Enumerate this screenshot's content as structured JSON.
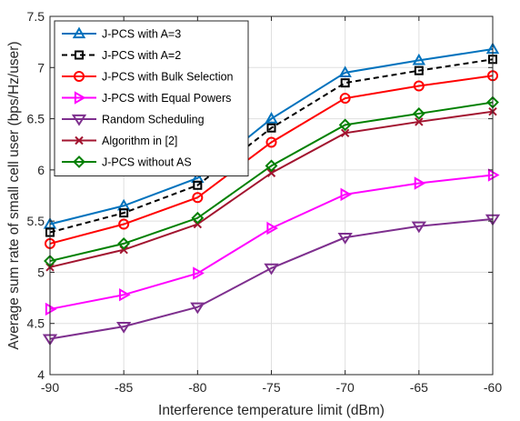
{
  "chart_data": {
    "type": "line",
    "title": "",
    "xlabel": "Interference temperature limit (dBm)",
    "ylabel": "Average sum rate of small cell user (bps/Hz/user)",
    "xlim": [
      -90,
      -60
    ],
    "ylim": [
      4,
      7.5
    ],
    "x": [
      -90,
      -85,
      -80,
      -75,
      -70,
      -65,
      -60
    ],
    "xticks": [
      "-90",
      "-85",
      "-80",
      "-75",
      "-70",
      "-65",
      "-60"
    ],
    "yticks": [
      "4",
      "4.5",
      "5",
      "5.5",
      "6",
      "6.5",
      "7",
      "7.5"
    ],
    "grid": true,
    "legend_position": "top-left",
    "series": [
      {
        "name": "J-PCS with A=3",
        "color": "#0072BD",
        "marker": "triangle-up",
        "dash": "solid",
        "values": [
          5.47,
          5.65,
          5.92,
          6.5,
          6.95,
          7.07,
          7.18
        ]
      },
      {
        "name": "J-PCS with A=2",
        "color": "#000000",
        "marker": "square",
        "dash": "dashed",
        "values": [
          5.39,
          5.58,
          5.85,
          6.41,
          6.85,
          6.97,
          7.08
        ]
      },
      {
        "name": "J-PCS with Bulk Selection",
        "color": "#FF0000",
        "marker": "circle",
        "dash": "solid",
        "values": [
          5.28,
          5.47,
          5.73,
          6.27,
          6.7,
          6.82,
          6.92
        ]
      },
      {
        "name": "J-PCS with Equal Powers",
        "color": "#FF00FF",
        "marker": "triangle-right",
        "dash": "solid",
        "values": [
          4.64,
          4.78,
          4.99,
          5.43,
          5.76,
          5.87,
          5.95
        ]
      },
      {
        "name": "Random Scheduling",
        "color": "#7E2F8E",
        "marker": "triangle-down",
        "dash": "solid",
        "values": [
          4.35,
          4.47,
          4.66,
          5.04,
          5.34,
          5.45,
          5.52
        ]
      },
      {
        "name": "Algorithm in [2]",
        "color": "#A2142F",
        "marker": "x",
        "dash": "solid",
        "values": [
          5.05,
          5.22,
          5.47,
          5.97,
          6.36,
          6.47,
          6.57
        ]
      },
      {
        "name": "J-PCS without AS",
        "color": "#008000",
        "marker": "diamond",
        "dash": "solid",
        "values": [
          5.11,
          5.28,
          5.53,
          6.04,
          6.44,
          6.55,
          6.66
        ]
      }
    ]
  }
}
